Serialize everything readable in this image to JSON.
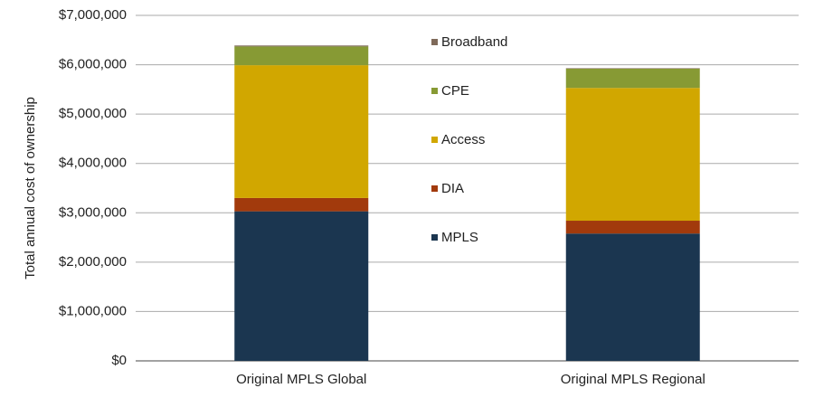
{
  "chart_data": {
    "type": "stacked_bar",
    "y_label": "Total annual cost of ownership",
    "categories": [
      "Original MPLS Global",
      "Original MPLS Regional"
    ],
    "series": [
      {
        "name": "MPLS",
        "color": "#1b3650",
        "values": [
          3030000,
          2580000
        ]
      },
      {
        "name": "DIA",
        "color": "#a23a0c",
        "values": [
          270000,
          260000
        ]
      },
      {
        "name": "Access",
        "color": "#d1a700",
        "values": [
          2690000,
          2690000
        ]
      },
      {
        "name": "CPE",
        "color": "#879a34",
        "values": [
          380000,
          390000
        ]
      },
      {
        "name": "Broadband",
        "color": "#7f6a5a",
        "values": [
          20000,
          10000
        ]
      }
    ],
    "ylim": [
      0,
      7000000
    ],
    "yticks": [
      {
        "value": 0,
        "label": "$0"
      },
      {
        "value": 1000000,
        "label": "$1,000,000"
      },
      {
        "value": 2000000,
        "label": "$2,000,000"
      },
      {
        "value": 3000000,
        "label": "$3,000,000"
      },
      {
        "value": 4000000,
        "label": "$4,000,000"
      },
      {
        "value": 5000000,
        "label": "$5,000,000"
      },
      {
        "value": 6000000,
        "label": "$6,000,000"
      },
      {
        "value": 7000000,
        "label": "$7,000,000"
      }
    ],
    "grid": true
  }
}
